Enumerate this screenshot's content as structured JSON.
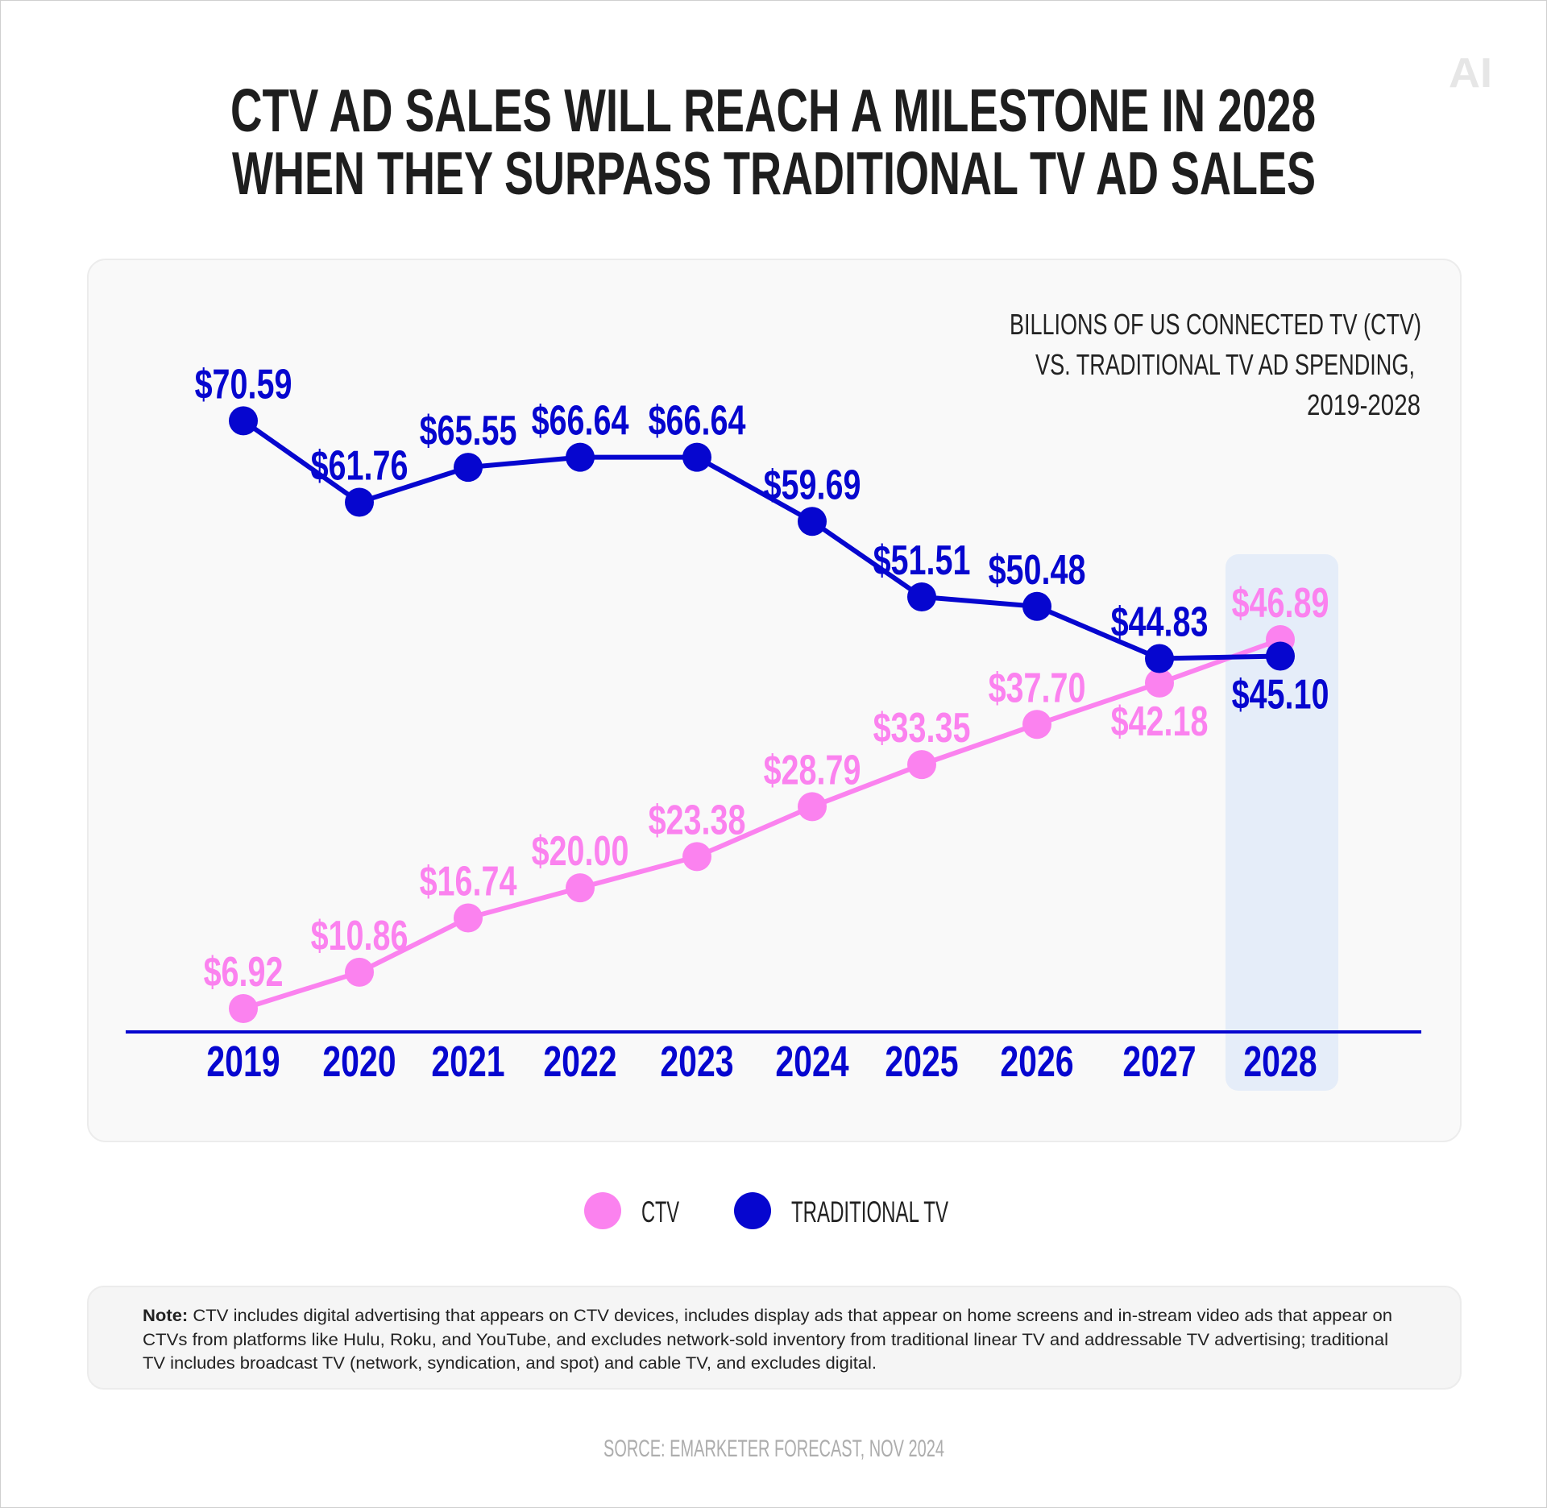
{
  "logo": "AI",
  "title": {
    "line1": "CTV AD SALES WILL REACH A MILESTONE IN 2028",
    "line2": "WHEN THEY SURPASS TRADITIONAL TV AD SALES"
  },
  "colors": {
    "ctv": "#fb82ef",
    "traditional_tv": "#0606cf",
    "highlight": "#e5edf9",
    "panel": "#f9f9f9"
  },
  "chart_data": {
    "type": "line",
    "subtitle": [
      "BILLIONS OF US CONNECTED TV (CTV)",
      "VS. TRADITIONAL TV AD SPENDING,",
      "2019-2028"
    ],
    "categories": [
      "2019",
      "2020",
      "2021",
      "2022",
      "2023",
      "2024",
      "2025",
      "2026",
      "2027",
      "2028"
    ],
    "highlighted_category": "2028",
    "series": [
      {
        "name": "CTV",
        "color": "#fb82ef",
        "values": [
          6.92,
          10.86,
          16.74,
          20.0,
          23.38,
          28.79,
          33.35,
          37.7,
          42.18,
          46.89
        ],
        "labels": [
          "$6.92",
          "$10.86",
          "$16.74",
          "$20.00",
          "$23.38",
          "$28.79",
          "$33.35",
          "$37.70",
          "$42.18",
          "$46.89"
        ]
      },
      {
        "name": "TRADITIONAL TV",
        "color": "#0606cf",
        "values": [
          70.59,
          61.76,
          65.55,
          66.64,
          66.64,
          59.69,
          51.51,
          50.48,
          44.83,
          45.1
        ],
        "labels": [
          "$70.59",
          "$61.76",
          "$65.55",
          "$66.64",
          "$66.64",
          "$59.69",
          "$51.51",
          "$50.48",
          "$44.83",
          "$45.10"
        ]
      }
    ],
    "xlabel": "",
    "ylabel": "",
    "grid": false,
    "legend": "bottom"
  },
  "legend": {
    "ctv": "CTV",
    "traditional_tv": "TRADITIONAL TV"
  },
  "note": {
    "label": "Note:",
    "line1": " CTV includes digital advertising that appears on CTV devices, includes display ads that appear on home screens and in-stream video ads that appear on",
    "line2": "CTVs from platforms like Hulu, Roku, and YouTube, and excludes network-sold inventory from traditional linear TV and addressable TV advertising; traditional",
    "line3": "TV includes broadcast TV (network, syndication, and spot) and cable TV, and excludes digital."
  },
  "source": "SORCE: EMARKETER FORECAST, NOV 2024"
}
